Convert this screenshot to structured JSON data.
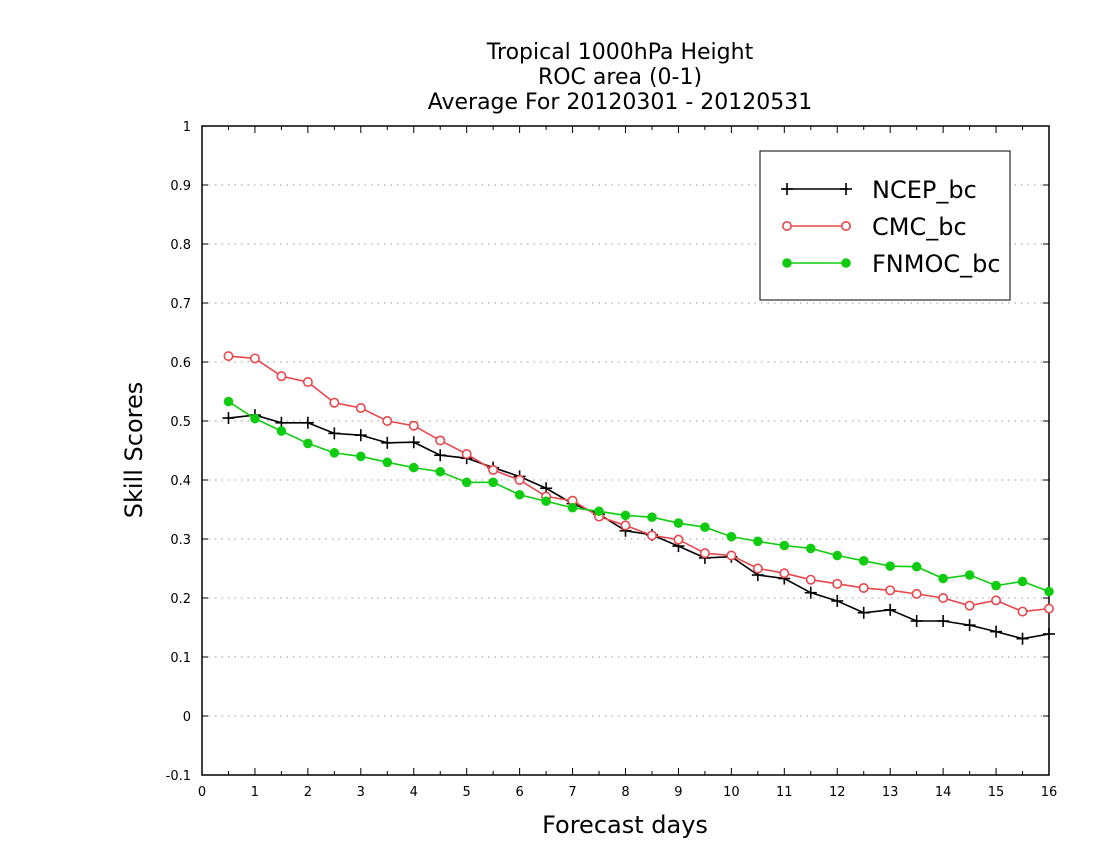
{
  "chart_data": {
    "type": "line",
    "title": [
      "Tropical 1000hPa Height",
      "ROC area (0-1)",
      "Average For 20120301 - 20120531"
    ],
    "xlabel": "Forecast days",
    "ylabel": "Skill Scores",
    "xlim": [
      0,
      16
    ],
    "ylim": [
      -0.1,
      1
    ],
    "xticks": [
      "0",
      "1",
      "2",
      "3",
      "4",
      "5",
      "6",
      "7",
      "8",
      "9",
      "10",
      "11",
      "12",
      "13",
      "14",
      "15",
      "16"
    ],
    "yticks": [
      "-0.1",
      "0",
      "0.1",
      "0.2",
      "0.3",
      "0.4",
      "0.5",
      "0.6",
      "0.7",
      "0.8",
      "0.9",
      "1"
    ],
    "grid": "horizontal dotted",
    "legend_position": "top-right",
    "x": [
      0.5,
      1,
      1.5,
      2,
      2.5,
      3,
      3.5,
      4,
      4.5,
      5,
      5.5,
      6,
      6.5,
      7,
      7.5,
      8,
      8.5,
      9,
      9.5,
      10,
      10.5,
      11,
      11.5,
      12,
      12.5,
      13,
      13.5,
      14,
      14.5,
      15,
      15.5,
      16
    ],
    "series": [
      {
        "name": "NCEP_bc",
        "color": "#000000",
        "marker": "plus",
        "values": [
          0.505,
          0.51,
          0.497,
          0.497,
          0.479,
          0.476,
          0.463,
          0.464,
          0.442,
          0.437,
          0.421,
          0.406,
          0.386,
          0.36,
          0.342,
          0.314,
          0.307,
          0.288,
          0.268,
          0.27,
          0.239,
          0.233,
          0.209,
          0.195,
          0.175,
          0.18,
          0.161,
          0.161,
          0.154,
          0.143,
          0.131,
          0.139
        ]
      },
      {
        "name": "CMC_bc",
        "color": "#e8474c",
        "marker": "open-circle",
        "values": [
          0.61,
          0.606,
          0.576,
          0.566,
          0.531,
          0.522,
          0.5,
          0.492,
          0.467,
          0.444,
          0.417,
          0.4,
          0.372,
          0.365,
          0.338,
          0.323,
          0.306,
          0.299,
          0.276,
          0.272,
          0.25,
          0.242,
          0.231,
          0.224,
          0.217,
          0.213,
          0.207,
          0.2,
          0.187,
          0.196,
          0.177,
          0.182
        ]
      },
      {
        "name": "FNMOC_bc",
        "color": "#10cc10",
        "marker": "filled-circle",
        "values": [
          0.533,
          0.504,
          0.483,
          0.462,
          0.446,
          0.44,
          0.43,
          0.421,
          0.414,
          0.396,
          0.396,
          0.375,
          0.364,
          0.353,
          0.347,
          0.34,
          0.337,
          0.327,
          0.32,
          0.304,
          0.296,
          0.289,
          0.284,
          0.272,
          0.263,
          0.254,
          0.253,
          0.233,
          0.239,
          0.221,
          0.228,
          0.211
        ]
      }
    ]
  }
}
